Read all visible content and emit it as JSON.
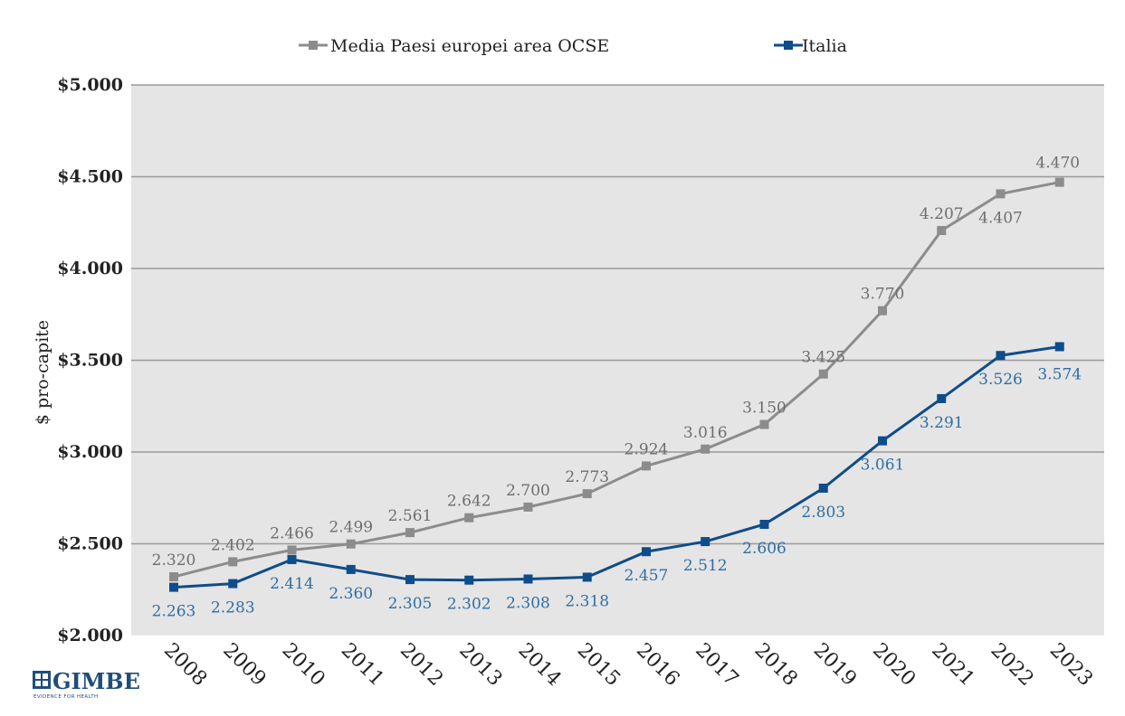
{
  "chart_data": {
    "type": "line",
    "ylabel": "$ pro-capite",
    "xlabel": "",
    "ylim": [
      2000,
      5000
    ],
    "y_ticks": [
      "$2.000",
      "$2.500",
      "$3.000",
      "$3.500",
      "$4.000",
      "$4.500",
      "$5.000"
    ],
    "y_tick_values": [
      2000,
      2500,
      3000,
      3500,
      4000,
      4500,
      5000
    ],
    "categories": [
      "2008",
      "2009",
      "2010",
      "2011",
      "2012",
      "2013",
      "2014",
      "2015",
      "2016",
      "2017",
      "2018",
      "2019",
      "2020",
      "2021",
      "2022",
      "2023"
    ],
    "grid": true,
    "legend_position": "top",
    "series": [
      {
        "name": "Media Paesi europei area OCSE",
        "color": "#8c8c8c",
        "values": [
          2320,
          2402,
          2466,
          2499,
          2561,
          2642,
          2700,
          2773,
          2924,
          3016,
          3150,
          3425,
          3770,
          4207,
          4407,
          4470
        ],
        "labels": [
          "2.320",
          "2.402",
          "2.466",
          "2.499",
          "2.561",
          "2.642",
          "2.700",
          "2.773",
          "2.924",
          "3.016",
          "3.150",
          "3.425",
          "3.770",
          "4.207",
          "4.407",
          "4.470"
        ]
      },
      {
        "name": "Italia",
        "color": "#0f4c8a",
        "values": [
          2263,
          2283,
          2414,
          2360,
          2305,
          2302,
          2308,
          2318,
          2457,
          2512,
          2606,
          2803,
          3061,
          3291,
          3526,
          3574
        ],
        "labels": [
          "2.263",
          "2.283",
          "2.414",
          "2.360",
          "2.305",
          "2.302",
          "2.308",
          "2.318",
          "2.457",
          "2.512",
          "2.606",
          "2.803",
          "3.061",
          "3.291",
          "3.526",
          "3.574"
        ]
      }
    ]
  },
  "logo": {
    "name": "GIMBE",
    "tagline": "EVIDENCE FOR HEALTH",
    "icon": "gimbe-logo-icon"
  }
}
